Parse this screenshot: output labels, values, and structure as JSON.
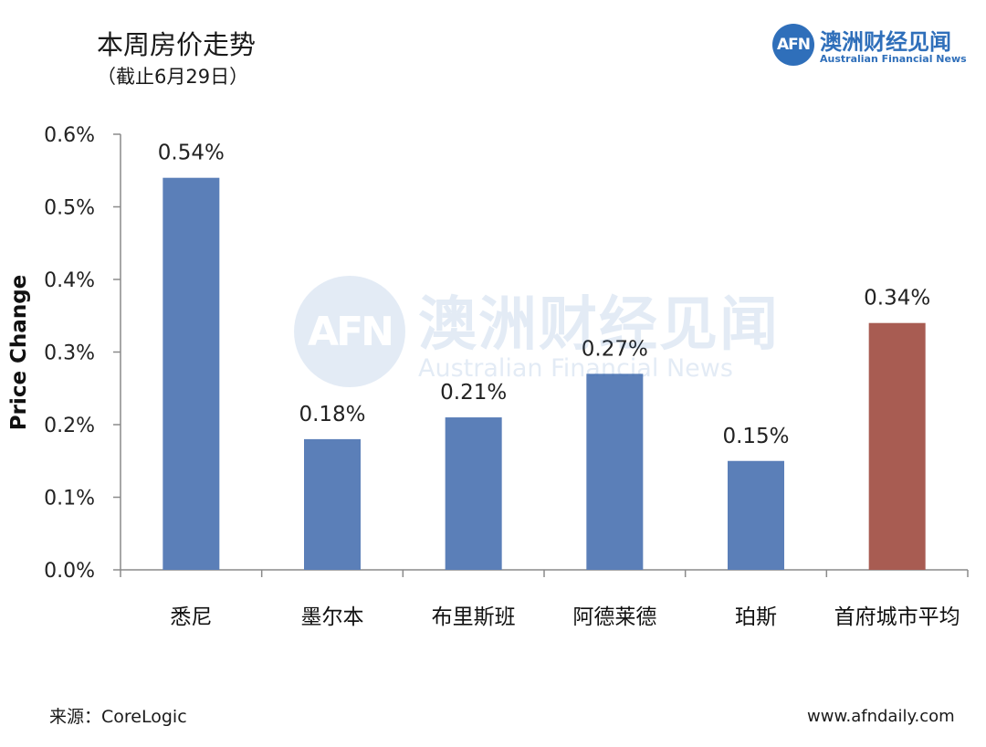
{
  "header": {
    "title": "本周房价走势",
    "subtitle": "（截止6月29日）"
  },
  "logo": {
    "mark": "AFN",
    "name_cn": "澳洲财经见闻",
    "name_en": "Australian Financial News",
    "brand_color": "#2f6fba"
  },
  "watermark": {
    "mark": "AFN",
    "name_cn": "澳洲财经见闻",
    "name_en": "Australian Financial News"
  },
  "footer": {
    "source": "来源：CoreLogic",
    "website": "www.afndaily.com"
  },
  "chart_data": {
    "type": "bar",
    "title": "",
    "xlabel": "",
    "ylabel": "Price Change",
    "ylim": [
      0,
      0.6
    ],
    "yticks": [
      0.0,
      0.1,
      0.2,
      0.3,
      0.4,
      0.5,
      0.6
    ],
    "ytick_labels": [
      "0.0%",
      "0.1%",
      "0.2%",
      "0.3%",
      "0.4%",
      "0.5%",
      "0.6%"
    ],
    "grid": false,
    "legend": "none",
    "categories": [
      "悉尼",
      "墨尔本",
      "布里斯班",
      "阿德莱德",
      "珀斯",
      "首府城市平均"
    ],
    "values": [
      0.54,
      0.18,
      0.21,
      0.27,
      0.15,
      0.34
    ],
    "data_labels": [
      "0.54%",
      "0.18%",
      "0.21%",
      "0.27%",
      "0.15%",
      "0.34%"
    ],
    "colors": [
      "#5b7fb8",
      "#5b7fb8",
      "#5b7fb8",
      "#5b7fb8",
      "#5b7fb8",
      "#a85c52"
    ]
  }
}
